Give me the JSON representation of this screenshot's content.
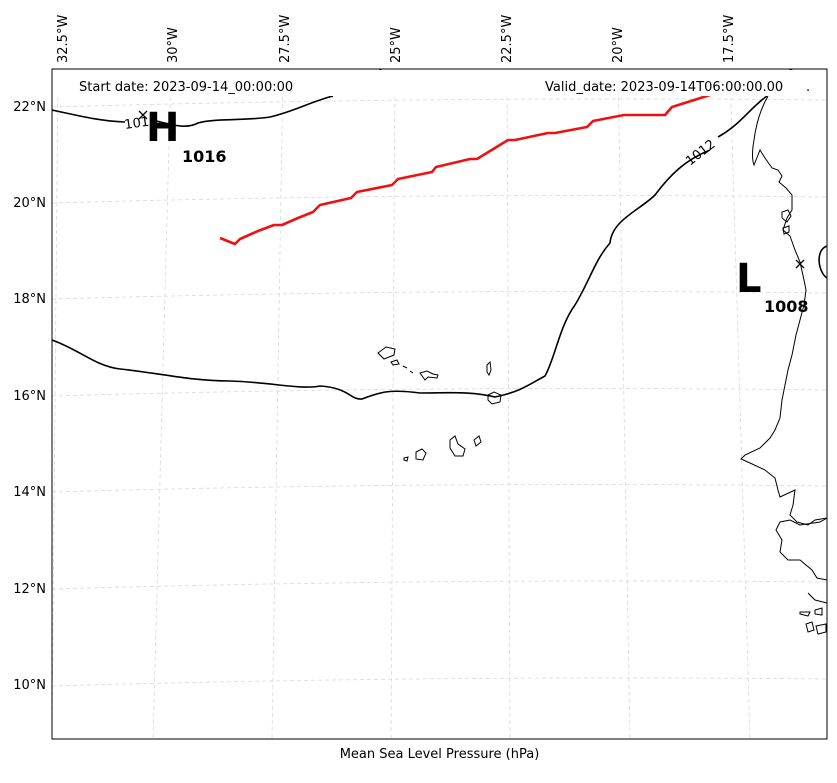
{
  "header": {
    "start_date": "Start date: 2023-09-14_00:00:00",
    "valid_date": "Valid_date: 2023-09-14T06:00:00.00"
  },
  "caption": "Mean Sea Level Pressure (hPa)",
  "longitude_ticks": [
    "32.5°W",
    "30°W",
    "27.5°W",
    "25°W",
    "22.5°W",
    "20°W",
    "17.5°W"
  ],
  "latitude_ticks": [
    "22°N",
    "20°N",
    "18°N",
    "16°N",
    "14°N",
    "12°N",
    "10°N"
  ],
  "isobar_labels": [
    "1016",
    "1012"
  ],
  "pressure_centers": [
    {
      "type": "H",
      "value": "1016"
    },
    {
      "type": "L",
      "value": "1008"
    }
  ],
  "colors": {
    "track": "#ee1111",
    "isobar": "#000000",
    "grid": "#d9d9d9",
    "coast": "#000000"
  }
}
